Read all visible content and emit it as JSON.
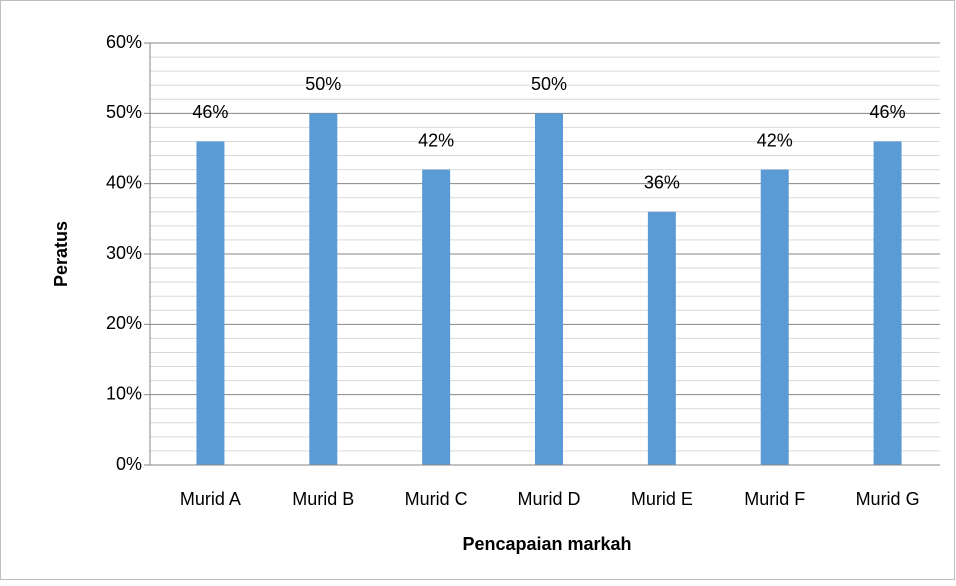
{
  "chart_data": {
    "type": "bar",
    "x_label": "Pencapaian markah",
    "y_label": "Peratus",
    "categories": [
      "Murid A",
      "Murid B",
      "Murid C",
      "Murid D",
      "Murid E",
      "Murid F",
      "Murid G"
    ],
    "values": [
      46,
      50,
      42,
      50,
      36,
      42,
      46
    ],
    "value_labels": [
      "46%",
      "50%",
      "42%",
      "50%",
      "36%",
      "42%",
      "46%"
    ],
    "color": "#5b9bd5",
    "ylim": [
      0,
      60
    ],
    "yticks": [
      {
        "value": 0,
        "label": "0%"
      },
      {
        "value": 10,
        "label": "10%"
      },
      {
        "value": 20,
        "label": "20%"
      },
      {
        "value": 30,
        "label": "30%"
      },
      {
        "value": 40,
        "label": "40%"
      },
      {
        "value": 50,
        "label": "50%"
      },
      {
        "value": 60,
        "label": "60%"
      }
    ],
    "grid": true,
    "minor_grid": true
  }
}
